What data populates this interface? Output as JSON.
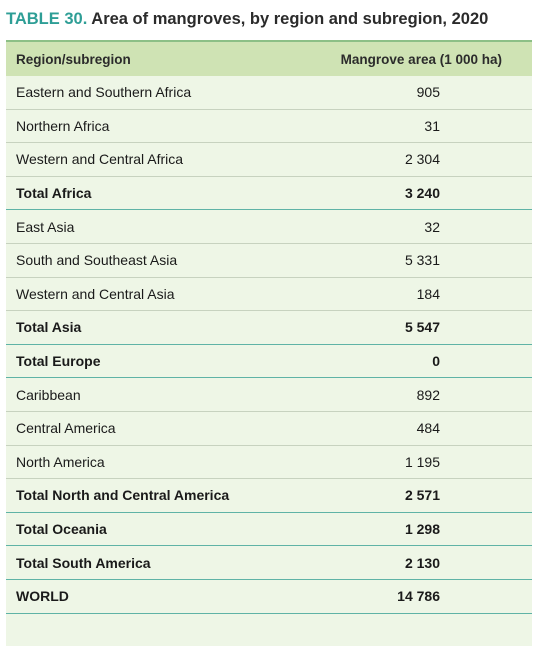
{
  "title": {
    "label": "TABLE 30.",
    "text": "Area of mangroves, by region and subregion, 2020"
  },
  "table": {
    "headers": [
      "Region/subregion",
      "Mangrove area (1 000 ha)"
    ],
    "rows": [
      {
        "region": "Eastern and Southern Africa",
        "value": "905",
        "total": false
      },
      {
        "region": "Northern Africa",
        "value": "31",
        "total": false
      },
      {
        "region": "Western and Central Africa",
        "value": "2 304",
        "total": false
      },
      {
        "region": "Total Africa",
        "value": "3 240",
        "total": true
      },
      {
        "region": "East Asia",
        "value": "32",
        "total": false
      },
      {
        "region": "South and Southeast Asia",
        "value": "5 331",
        "total": false
      },
      {
        "region": "Western and Central Asia",
        "value": "184",
        "total": false
      },
      {
        "region": "Total Asia",
        "value": "5 547",
        "total": true
      },
      {
        "region": "Total Europe",
        "value": "0",
        "total": true
      },
      {
        "region": "Caribbean",
        "value": "892",
        "total": false
      },
      {
        "region": "Central America",
        "value": "484",
        "total": false
      },
      {
        "region": "North America",
        "value": "1 195",
        "total": false
      },
      {
        "region": "Total North and Central America",
        "value": "2 571",
        "total": true
      },
      {
        "region": "Total Oceania",
        "value": "1 298",
        "total": true
      },
      {
        "region": "Total South America",
        "value": "2 130",
        "total": true
      },
      {
        "region": "WORLD",
        "value": "14 786",
        "total": true
      }
    ]
  },
  "colors": {
    "title_label": "#2e9e96",
    "header_bg": "#cfe3b4",
    "table_bg": "#eef6e6",
    "total_rule": "#5fb3a6"
  }
}
